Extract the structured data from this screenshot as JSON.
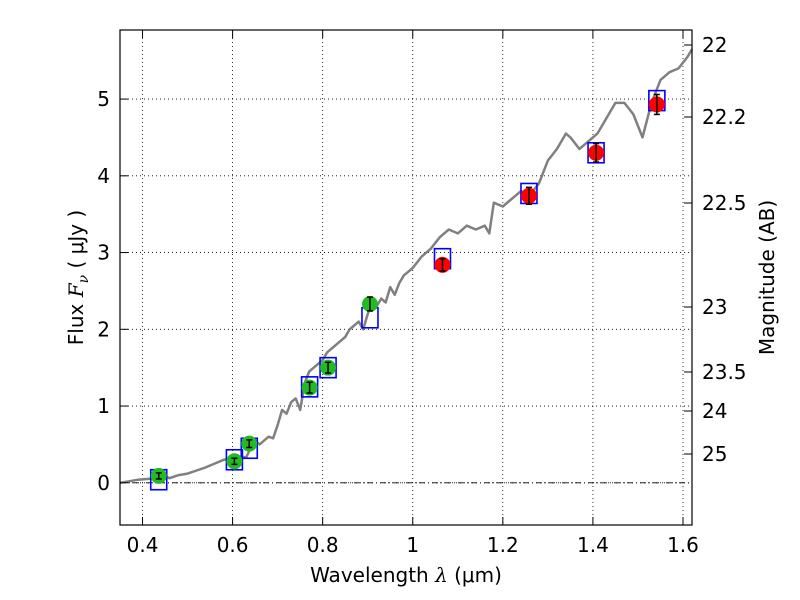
{
  "chart_data": {
    "type": "scatter",
    "xlabel": "Wavelength",
    "xlabel_symbol": "λ",
    "xlabel_unit": "(μm)",
    "ylabel": "Flux",
    "ylabel_symbol": "F",
    "ylabel_subscript": "ν",
    "ylabel_unit": "( μJy )",
    "y2label": "Magnitude (AB)",
    "xlim": [
      0.35,
      1.62
    ],
    "ylim": [
      -0.55,
      5.9
    ],
    "grid": true,
    "x_ticks": [
      0.4,
      0.6,
      0.8,
      1.0,
      1.2,
      1.4,
      1.6
    ],
    "x_tick_labels": [
      "0.4",
      "0.6",
      "0.8",
      "1",
      "1.2",
      "1.4",
      "1.6"
    ],
    "y_ticks": [
      0,
      1,
      2,
      3,
      4,
      5
    ],
    "y_tick_labels": [
      "0",
      "1",
      "2",
      "3",
      "4",
      "5"
    ],
    "y2_ticks": [
      22,
      22.2,
      22.5,
      23,
      23.5,
      24,
      25
    ],
    "y2_tick_labels": [
      "22",
      "22.2",
      "22.5",
      "23",
      "23.5",
      "24",
      "25"
    ],
    "zero_line": 0,
    "colors": {
      "model": "#808080",
      "box": "#0000ff",
      "green": "#22bb22",
      "red": "#ff0000",
      "errorbar": "#000000"
    },
    "series": [
      {
        "name": "model spectrum",
        "style": "line",
        "x": [
          0.35,
          0.37,
          0.39,
          0.41,
          0.43,
          0.44,
          0.45,
          0.46,
          0.48,
          0.5,
          0.52,
          0.54,
          0.56,
          0.58,
          0.6,
          0.62,
          0.63,
          0.64,
          0.65,
          0.66,
          0.67,
          0.68,
          0.69,
          0.7,
          0.71,
          0.72,
          0.73,
          0.74,
          0.75,
          0.76,
          0.77,
          0.78,
          0.79,
          0.8,
          0.81,
          0.82,
          0.83,
          0.84,
          0.85,
          0.86,
          0.87,
          0.88,
          0.89,
          0.9,
          0.91,
          0.92,
          0.93,
          0.94,
          0.95,
          0.96,
          0.97,
          0.98,
          0.99,
          1.0,
          1.02,
          1.04,
          1.06,
          1.08,
          1.1,
          1.12,
          1.14,
          1.16,
          1.17,
          1.18,
          1.2,
          1.22,
          1.24,
          1.26,
          1.28,
          1.3,
          1.32,
          1.34,
          1.35,
          1.37,
          1.39,
          1.41,
          1.43,
          1.45,
          1.47,
          1.49,
          1.51,
          1.53,
          1.54,
          1.55,
          1.57,
          1.59,
          1.61,
          1.62
        ],
        "y": [
          0.0,
          0.02,
          0.04,
          0.05,
          0.06,
          0.07,
          0.09,
          0.06,
          0.1,
          0.12,
          0.16,
          0.2,
          0.25,
          0.3,
          0.32,
          0.34,
          0.33,
          0.45,
          0.55,
          0.5,
          0.55,
          0.6,
          0.58,
          0.75,
          0.95,
          0.9,
          1.05,
          1.1,
          0.95,
          1.3,
          1.45,
          1.5,
          1.55,
          1.6,
          1.7,
          1.75,
          1.8,
          1.85,
          1.9,
          2.0,
          2.05,
          2.1,
          2.0,
          2.2,
          2.35,
          2.3,
          2.4,
          2.35,
          2.55,
          2.45,
          2.6,
          2.7,
          2.75,
          2.8,
          2.95,
          3.05,
          3.2,
          3.3,
          3.25,
          3.35,
          3.3,
          3.35,
          3.25,
          3.65,
          3.6,
          3.7,
          3.8,
          3.75,
          3.9,
          4.2,
          4.35,
          4.55,
          4.5,
          4.35,
          4.45,
          4.55,
          4.75,
          4.95,
          4.95,
          4.8,
          4.5,
          4.95,
          5.1,
          5.25,
          5.35,
          5.4,
          5.55,
          5.65
        ]
      },
      {
        "name": "model photometry",
        "style": "box",
        "x": [
          0.436,
          0.604,
          0.637,
          0.771,
          0.812,
          0.905,
          1.066,
          1.258,
          1.407,
          1.542
        ],
        "y": [
          0.04,
          0.3,
          0.45,
          1.25,
          1.5,
          2.15,
          2.92,
          3.77,
          4.3,
          4.98
        ]
      },
      {
        "name": "optical observations",
        "style": "point",
        "x": [
          0.436,
          0.604,
          0.637,
          0.771,
          0.812,
          0.905
        ],
        "y": [
          0.09,
          0.28,
          0.51,
          1.24,
          1.5,
          2.33
        ],
        "err": [
          0.04,
          0.04,
          0.05,
          0.07,
          0.07,
          0.09
        ]
      },
      {
        "name": "near-infrared observations",
        "style": "point",
        "x": [
          1.066,
          1.258,
          1.407,
          1.542
        ],
        "y": [
          2.84,
          3.74,
          4.3,
          4.93
        ],
        "err": [
          0.08,
          0.11,
          0.12,
          0.13
        ]
      }
    ]
  }
}
